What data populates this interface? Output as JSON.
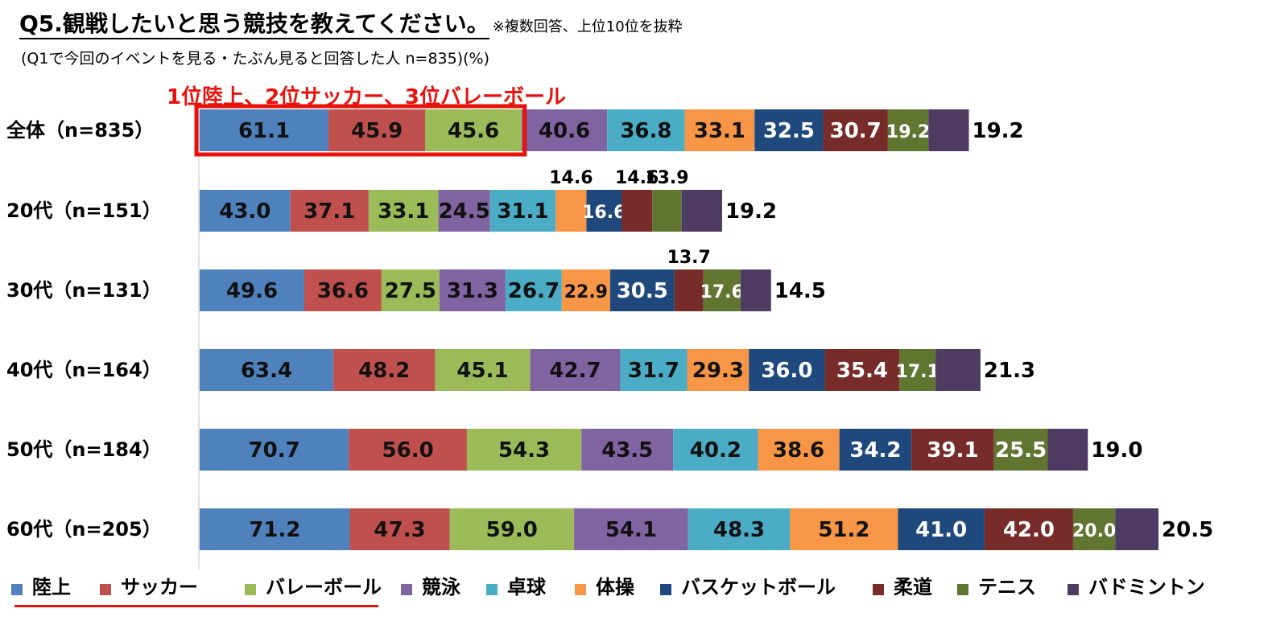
{
  "title": "Q5.観戦したいと思う競技を教えてください。",
  "note": "※複数回答、上位10位を抜粋",
  "subtitle": "(Q1で今回のイベントを見る・たぶん見ると回答した人 n=835)(%)",
  "highlight": "1位陸上、2位サッカー、3位バレーボール",
  "chart_data": {
    "type": "bar",
    "orientation": "horizontal-stacked",
    "categories": [
      "全体（n=835）",
      "20代（n=151）",
      "30代（n=131）",
      "40代（n=164）",
      "50代（n=184）",
      "60代（n=205）"
    ],
    "series": [
      {
        "name": "陸上",
        "color": "#4f81bd",
        "values": [
          61.1,
          43.0,
          49.6,
          63.4,
          70.7,
          71.2
        ]
      },
      {
        "name": "サッカー",
        "color": "#c0504d",
        "values": [
          45.9,
          37.1,
          36.6,
          48.2,
          56.0,
          47.3
        ]
      },
      {
        "name": "バレーボール",
        "color": "#9bbb59",
        "values": [
          45.6,
          33.1,
          27.5,
          45.1,
          54.3,
          59.0
        ]
      },
      {
        "name": "競泳",
        "color": "#8064a2",
        "values": [
          40.6,
          24.5,
          31.3,
          42.7,
          43.5,
          54.1
        ]
      },
      {
        "name": "卓球",
        "color": "#4bacc6",
        "values": [
          36.8,
          31.1,
          26.7,
          31.7,
          40.2,
          48.3
        ]
      },
      {
        "name": "体操",
        "color": "#f79646",
        "values": [
          33.1,
          14.6,
          22.9,
          29.3,
          38.6,
          51.2
        ]
      },
      {
        "name": "バスケットボール",
        "color": "#1f497d",
        "values": [
          32.5,
          16.6,
          30.5,
          36.0,
          34.2,
          41.0
        ]
      },
      {
        "name": "柔道",
        "color": "#772c2a",
        "values": [
          30.7,
          14.6,
          13.7,
          35.4,
          39.1,
          42.0
        ]
      },
      {
        "name": "テニス",
        "color": "#5f7530",
        "values": [
          19.2,
          13.9,
          17.6,
          17.1,
          25.5,
          20.0
        ]
      },
      {
        "name": "バドミントン",
        "color": "#4e3b62",
        "values": [
          19.2,
          19.2,
          14.5,
          21.3,
          19.0,
          20.5
        ]
      }
    ],
    "value_format": "one-decimal",
    "grid": false,
    "legend_position": "bottom"
  }
}
